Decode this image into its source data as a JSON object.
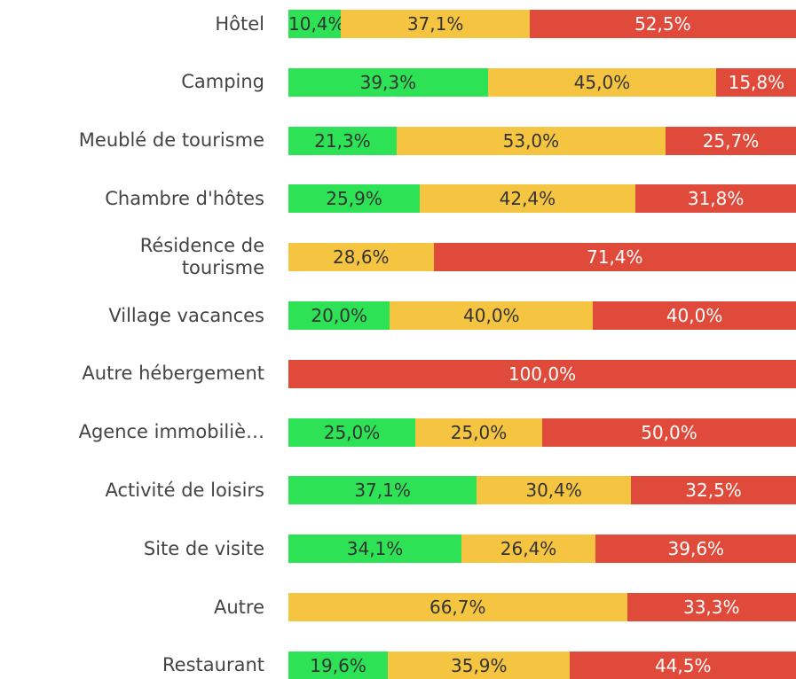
{
  "chart_data": {
    "type": "stacked-bar-horizontal",
    "categories": [
      "Hôtel",
      "Camping",
      "Meublé de tourisme",
      "Chambre d'hôtes",
      "Résidence de tourisme",
      "Village vacances",
      "Autre hébergement",
      "Agence immobiliè…",
      "Activité de loisirs",
      "Site de visite",
      "Autre",
      "Restaurant"
    ],
    "xlim": [
      0,
      100
    ],
    "series": [
      {
        "color": "#2ee256",
        "label_color": "#333333",
        "values": [
          10.4,
          39.3,
          21.3,
          25.9,
          0,
          20.0,
          0,
          25.0,
          37.1,
          34.1,
          0,
          19.6
        ],
        "value_labels": [
          "10,4%",
          "39,3%",
          "21,3%",
          "25,9%",
          null,
          "20,0%",
          null,
          "25,0%",
          "37,1%",
          "34,1%",
          null,
          "19,6%"
        ]
      },
      {
        "color": "#f5c542",
        "label_color": "#333333",
        "values": [
          37.1,
          45.0,
          53.0,
          42.4,
          28.6,
          40.0,
          0,
          25.0,
          30.4,
          26.4,
          66.7,
          35.9
        ],
        "value_labels": [
          "37,1%",
          "45,0%",
          "53,0%",
          "42,4%",
          "28,6%",
          "40,0%",
          null,
          "25,0%",
          "30,4%",
          "26,4%",
          "66,7%",
          "35,9%"
        ]
      },
      {
        "color": "#e04a3a",
        "label_color": "#ffffff",
        "values": [
          52.5,
          15.8,
          25.7,
          31.8,
          71.4,
          40.0,
          100.0,
          50.0,
          32.5,
          39.6,
          33.3,
          44.5
        ],
        "value_labels": [
          "52,5%",
          "15,8%",
          "25,7%",
          "31,8%",
          "71,4%",
          "40,0%",
          "100,0%",
          "50,0%",
          "32,5%",
          "39,6%",
          "33,3%",
          "44,5%"
        ]
      }
    ]
  }
}
